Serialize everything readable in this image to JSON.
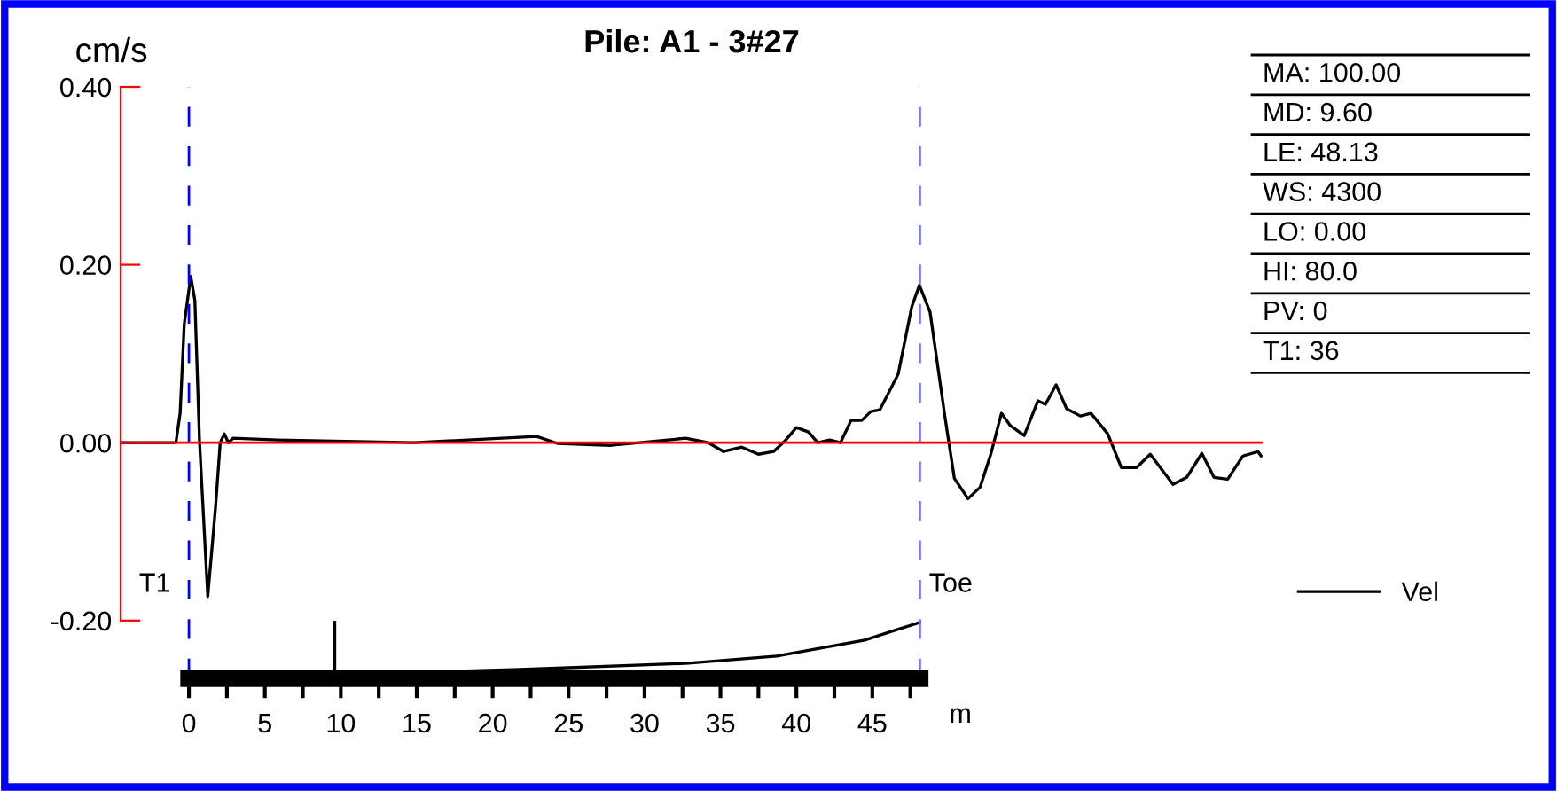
{
  "chart_data": {
    "type": "line",
    "title": "Pile: A1 - 3#27",
    "ylabel": "cm/s",
    "xlabel": "m",
    "series": [
      {
        "name": "Vel",
        "color": "#000000",
        "x": [
          -4.5,
          -0.86,
          -0.58,
          -0.31,
          0.12,
          0.39,
          0.7,
          1.24,
          1.75,
          2.06,
          2.33,
          2.6,
          2.9,
          5.83,
          14.8,
          22.9,
          24.3,
          27.8,
          32.7,
          34.2,
          35.2,
          36.4,
          37.5,
          38.5,
          39.3,
          40.0,
          40.8,
          41.4,
          42.2,
          42.9,
          43.6,
          44.3,
          44.9,
          45.5,
          46.7,
          47.6,
          48.1,
          48.8,
          49.8,
          50.4,
          51.3,
          52.1,
          52.8,
          53.5,
          54.1,
          55.0,
          55.9,
          56.4,
          57.1,
          57.8,
          58.7,
          59.4,
          60.5,
          61.4,
          62.4,
          63.3,
          64.8,
          65.7,
          66.7,
          67.5,
          68.4,
          69.4,
          70.4,
          70.6
        ],
        "values": [
          0,
          0,
          0.033,
          0.133,
          0.187,
          0.16,
          0,
          -0.173,
          -0.073,
          0,
          0.01,
          0,
          0.005,
          0.003,
          0,
          0.007,
          -0.001,
          -0.003,
          0.005,
          0,
          -0.01,
          -0.005,
          -0.013,
          -0.01,
          0.003,
          0.017,
          0.012,
          0,
          0.003,
          0,
          0.025,
          0.025,
          0.035,
          0.037,
          0.077,
          0.153,
          0.177,
          0.147,
          0.027,
          -0.04,
          -0.063,
          -0.05,
          -0.013,
          0.033,
          0.019,
          0.008,
          0.047,
          0.043,
          0.065,
          0.038,
          0.03,
          0.033,
          0.01,
          -0.028,
          -0.028,
          -0.013,
          -0.047,
          -0.039,
          -0.012,
          -0.039,
          -0.041,
          -0.015,
          -0.01,
          -0.015
        ]
      },
      {
        "color": "#000000",
        "x": [
          0,
          21.8,
          32.9,
          38.7,
          44.5,
          48.13
        ],
        "values": [
          -0.265,
          -0.255,
          -0.248,
          -0.24,
          -0.222,
          -0.202
        ]
      },
      {
        "color": "#000000",
        "x": [
          9.6,
          9.6
        ],
        "values": [
          -0.265,
          -0.202
        ]
      }
    ],
    "xlim": [
      -4.5,
      70.7
    ],
    "ylim": [
      -0.265,
      0.4
    ],
    "xticks": [
      0,
      {
        "value": 2.5,
        "label": null
      },
      5,
      {
        "value": 7.5,
        "label": null
      },
      10,
      {
        "value": 12.5,
        "label": null
      },
      15,
      {
        "value": 17.5,
        "label": null
      },
      20,
      {
        "value": 22.5,
        "label": null
      },
      25,
      {
        "value": 27.5,
        "label": null
      },
      30,
      {
        "value": 32.5,
        "label": null
      },
      35,
      {
        "value": 37.5,
        "label": null
      },
      40,
      {
        "value": 42.5,
        "label": null
      },
      45,
      {
        "value": 47.5,
        "label": null
      }
    ],
    "yticks": [
      {
        "value": -0.2,
        "label": "-0.20"
      },
      {
        "value": 0,
        "label": "0.00"
      },
      {
        "value": 0.2,
        "label": "0.20"
      },
      {
        "value": 0.4,
        "label": "0.40"
      }
    ],
    "ref_lines": [
      {
        "axis": "x",
        "value": 0,
        "label": "T1",
        "color": "#0000ff",
        "line_style": "dashed"
      },
      {
        "axis": "x",
        "value": 48.13,
        "label": "Toe",
        "color": "#7777ff",
        "line_style": "dashed"
      },
      {
        "axis": "y",
        "value": 0,
        "color": "#ff0000",
        "line_style": "solid"
      }
    ],
    "annotations": [
      "MA: 100.00",
      "MD: 9.60",
      "LE: 48.13",
      "WS: 4300",
      "LO: 0.00",
      "HI: 80.0",
      "PV: 0",
      "T1: 36"
    ],
    "legend": "bottom right",
    "grid": false,
    "marker": "none",
    "line_style": "solid"
  }
}
